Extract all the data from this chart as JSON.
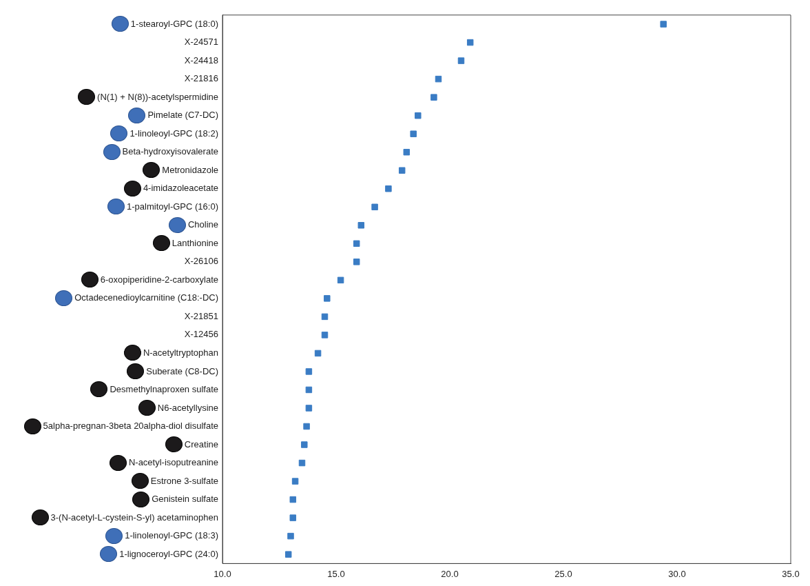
{
  "chart_data": {
    "type": "scatter",
    "orientation": "horizontal",
    "marker": "square",
    "grid": false,
    "color": "#3a7cc4",
    "categories": [
      "1-stearoyl-GPC (18:0)",
      "X-24571",
      "X-24418",
      "X-21816",
      "(N(1) + N(8))-acetylspermidine",
      "Pimelate (C7-DC)",
      "1-linoleoyl-GPC (18:2)",
      "Beta-hydroxyisovalerate",
      "Metronidazole",
      "4-imidazoleacetate",
      "1-palmitoyl-GPC (16:0)",
      "Choline",
      "Lanthionine",
      "X-26106",
      "6-oxopiperidine-2-carboxylate",
      "Octadecenedioylcarnitine (C18:-DC)",
      "X-21851",
      "X-12456",
      "N-acetyltryptophan",
      "Suberate (C8-DC)",
      "Desmethylnaproxen sulfate",
      "N6-acetyllysine",
      "5alpha-pregnan-3beta 20alpha-diol disulfate",
      "Creatine",
      "N-acetyl-isoputreanine",
      "Estrone 3-sulfate",
      "Genistein sulfate",
      "3-(N-acetyl-L-cystein-S-yl) acetaminophen",
      "1-linolenoyl-GPC (18:3)",
      "1-lignoceroyl-GPC (24:0)"
    ],
    "values": [
      29.4,
      20.9,
      20.5,
      19.5,
      19.3,
      18.6,
      18.4,
      18.1,
      17.9,
      17.3,
      16.7,
      16.1,
      15.9,
      15.9,
      15.2,
      14.6,
      14.5,
      14.5,
      14.2,
      13.8,
      13.8,
      13.8,
      13.7,
      13.6,
      13.5,
      13.2,
      13.1,
      13.1,
      13.0,
      12.9
    ],
    "xlim": [
      10,
      35
    ],
    "xticks": [
      {
        "value": 10,
        "label": "10.0"
      },
      {
        "value": 15,
        "label": "15.0"
      },
      {
        "value": 20,
        "label": "20.0"
      },
      {
        "value": 25,
        "label": "25.0"
      },
      {
        "value": 30,
        "label": "30.0"
      },
      {
        "value": 35,
        "label": "35.0"
      }
    ]
  }
}
